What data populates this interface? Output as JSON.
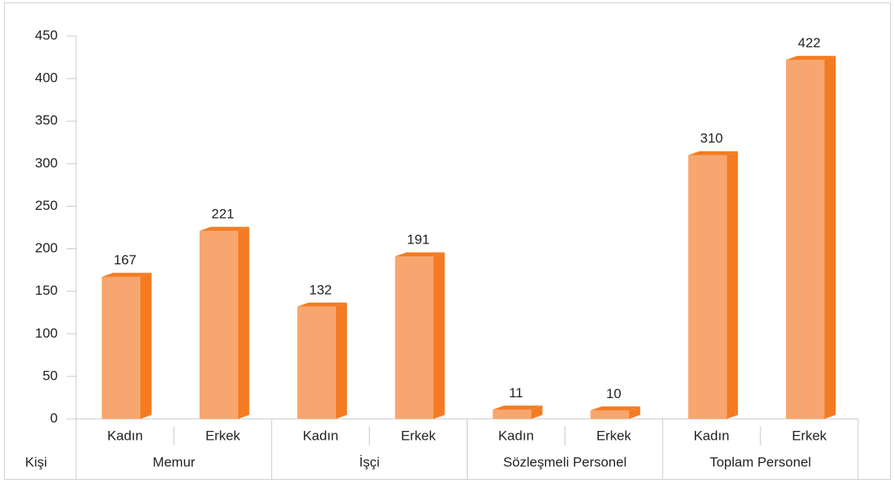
{
  "chart_data": {
    "type": "bar",
    "y_label": "Kişi",
    "groups": [
      {
        "name": "Memur",
        "categories": [
          "Kadın",
          "Erkek"
        ],
        "values": [
          167,
          221
        ]
      },
      {
        "name": "İşçi",
        "categories": [
          "Kadın",
          "Erkek"
        ],
        "values": [
          132,
          191
        ]
      },
      {
        "name": "Sözleşmeli Personel",
        "categories": [
          "Kadın",
          "Erkek"
        ],
        "values": [
          11,
          10
        ]
      },
      {
        "name": "Toplam Personel",
        "categories": [
          "Kadın",
          "Erkek"
        ],
        "values": [
          310,
          422
        ]
      }
    ],
    "color": "#f7a66f",
    "side_color": "#f47b22",
    "ylim": [
      0,
      450
    ],
    "yticks": [
      0,
      50,
      100,
      150,
      200,
      250,
      300,
      350,
      400,
      450
    ]
  }
}
